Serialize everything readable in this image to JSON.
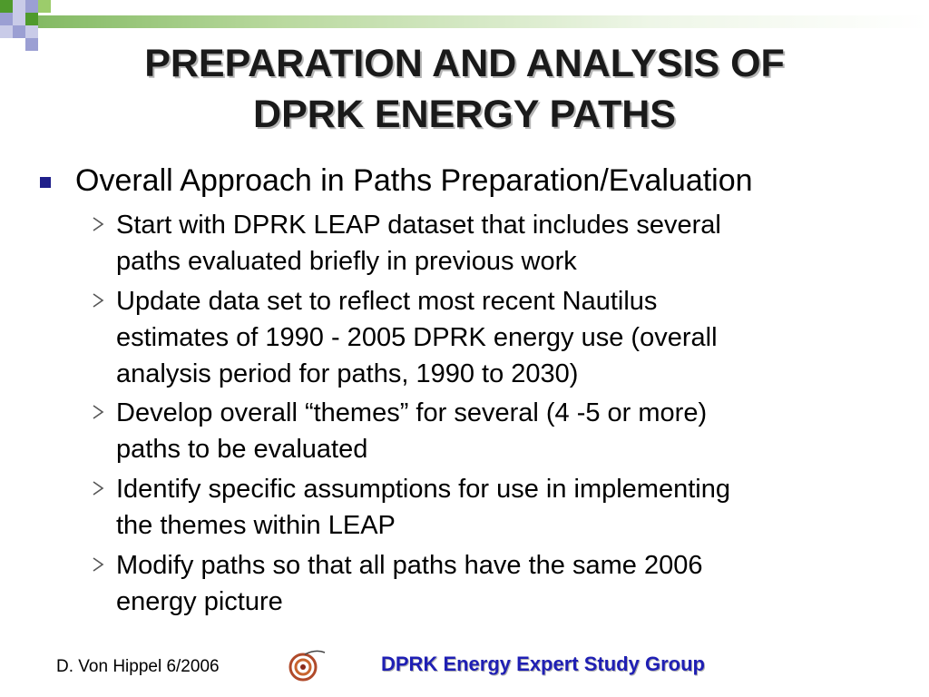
{
  "title": {
    "line1": "PREPARATION AND ANALYSIS OF",
    "line2": "DPRK ENERGY PATHS"
  },
  "main_point": "Overall Approach in Paths Preparation/Evaluation",
  "sub_points": [
    {
      "line1": "Start with DPRK LEAP dataset that includes several",
      "line2": "paths evaluated briefly in previous work",
      "line3": ""
    },
    {
      "line1": "Update data set to reflect most recent Nautilus",
      "line2": "estimates of 1990 - 2005 DPRK energy use (overall",
      "line3": "analysis period for paths, 1990 to 2030)"
    },
    {
      "line1": "Develop overall “themes” for several (4 -5 or more)",
      "line2": "paths to be evaluated",
      "line3": ""
    },
    {
      "line1": "Identify specific assumptions for use in implementing",
      "line2": "the themes within LEAP",
      "line3": ""
    },
    {
      "line1": "Modify paths so that all paths have the same 2006",
      "line2": "energy picture",
      "line3": ""
    }
  ],
  "footer": {
    "author_date": "D. Von Hippel  6/2006",
    "group": "DPRK Energy Expert Study Group"
  },
  "colors": {
    "bullet": "#1f1f8a",
    "footer_group": "#1f1fb4",
    "corner_green": "#4f9a2c",
    "corner_purple": "#9b9fd3"
  },
  "icons": {
    "logo": "spiral-logo-icon",
    "sub_bullet": "arrowhead-icon"
  }
}
